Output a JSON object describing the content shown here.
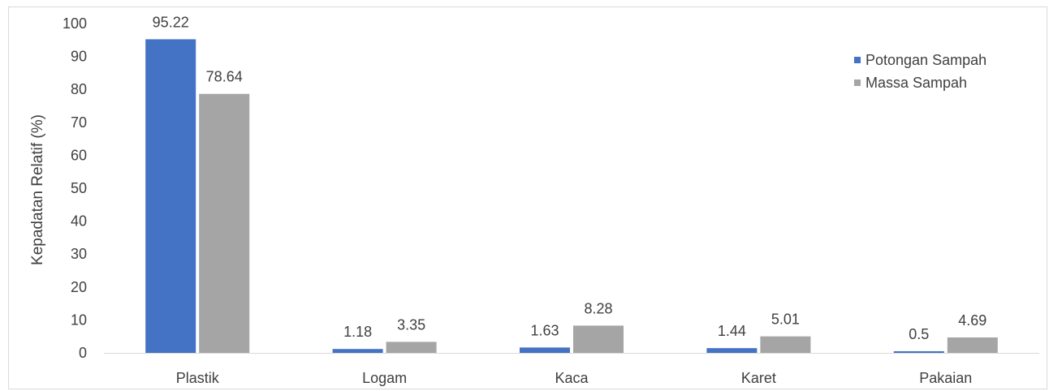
{
  "chart_data": {
    "type": "bar",
    "title": "",
    "xlabel": "",
    "ylabel": "Kepadatan Relatif (%)",
    "ylim": [
      0,
      100
    ],
    "yticks": [
      0,
      10,
      20,
      30,
      40,
      50,
      60,
      70,
      80,
      90,
      100
    ],
    "categories": [
      "Plastik",
      "Logam",
      "Kaca",
      "Karet",
      "Pakaian"
    ],
    "series": [
      {
        "name": "Potongan Sampah",
        "color": "#4472c4",
        "values": [
          95.22,
          1.18,
          1.63,
          1.44,
          0.5
        ],
        "labels": [
          "95.22",
          "1.18",
          "1.63",
          "1.44",
          "0.5"
        ]
      },
      {
        "name": "Massa Sampah",
        "color": "#a5a5a5",
        "values": [
          78.64,
          3.35,
          8.28,
          5.01,
          4.69
        ],
        "labels": [
          "78.64",
          "3.35",
          "8.28",
          "5.01",
          "4.69"
        ]
      }
    ],
    "grid": false,
    "legend_position": "top-right"
  }
}
